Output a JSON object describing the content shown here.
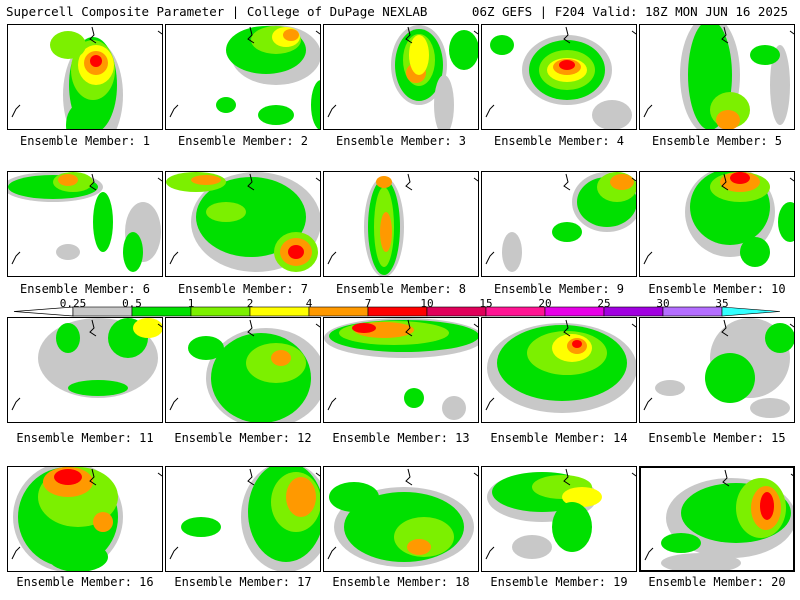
{
  "header": {
    "left_title": "Supercell Composite Parameter | College of DuPage NEXLAB",
    "right_title": "06Z GEFS | F204 Valid: 18Z MON JUN 16 2025"
  },
  "colorbar": {
    "levels": [
      "0.25",
      "0.5",
      "1",
      "2",
      "4",
      "7",
      "10",
      "15",
      "20",
      "25",
      "30",
      "35"
    ],
    "colors": [
      "#c8c8c8",
      "#00e000",
      "#7cf000",
      "#ffff00",
      "#ff9900",
      "#ff0000",
      "#e0005a",
      "#ff1493",
      "#e600e6",
      "#a100e0",
      "#b46eff",
      "#33ffff"
    ]
  },
  "panels": [
    {
      "label": "Ensemble Member: 1"
    },
    {
      "label": "Ensemble Member: 2"
    },
    {
      "label": "Ensemble Member: 3"
    },
    {
      "label": "Ensemble Member: 4"
    },
    {
      "label": "Ensemble Member: 5"
    },
    {
      "label": "Ensemble Member: 6"
    },
    {
      "label": "Ensemble Member: 7"
    },
    {
      "label": "Ensemble Member: 8"
    },
    {
      "label": "Ensemble Member: 9"
    },
    {
      "label": "Ensemble Member: 10"
    },
    {
      "label": "Ensemble Member: 11"
    },
    {
      "label": "Ensemble Member: 12"
    },
    {
      "label": "Ensemble Member: 13"
    },
    {
      "label": "Ensemble Member: 14"
    },
    {
      "label": "Ensemble Member: 15"
    },
    {
      "label": "Ensemble Member: 16"
    },
    {
      "label": "Ensemble Member: 17"
    },
    {
      "label": "Ensemble Member: 18"
    },
    {
      "label": "Ensemble Member: 19"
    },
    {
      "label": "Ensemble Member: 20",
      "selected": true
    }
  ]
}
